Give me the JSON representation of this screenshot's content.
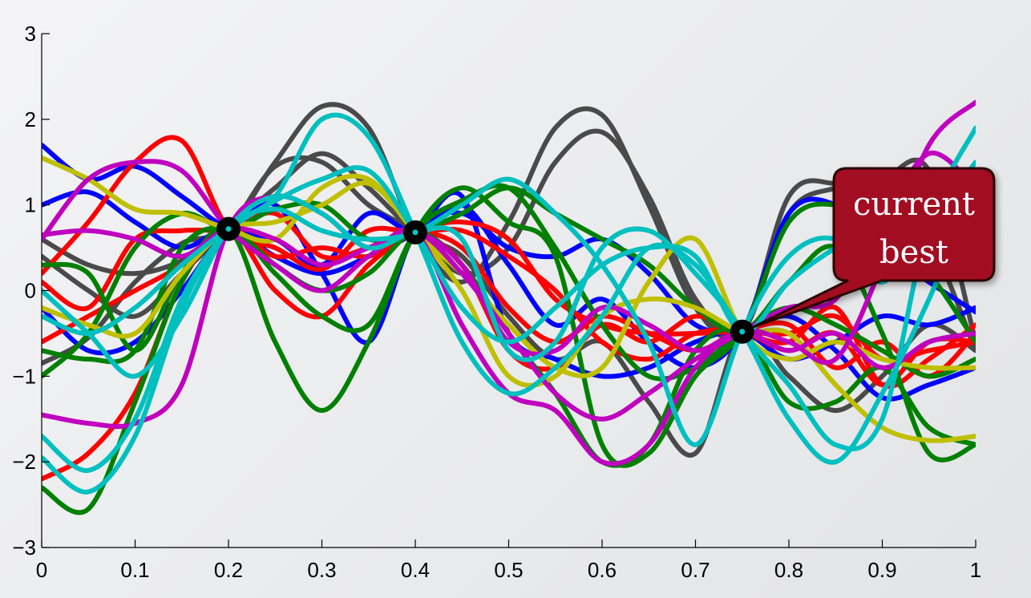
{
  "chart_data": {
    "type": "line",
    "title": "",
    "xlabel": "",
    "ylabel": "",
    "xlim": [
      0,
      1
    ],
    "ylim": [
      -3,
      3
    ],
    "x_ticks": [
      0,
      0.1,
      0.2,
      0.3,
      0.4,
      0.5,
      0.6,
      0.7,
      0.8,
      0.9,
      1
    ],
    "x_tick_labels": [
      "0",
      "0.1",
      "0.2",
      "0.3",
      "0.4",
      "0.5",
      "0.6",
      "0.7",
      "0.8",
      "0.9",
      "1"
    ],
    "y_ticks": [
      -3,
      -2,
      -1,
      0,
      1,
      2,
      3
    ],
    "y_tick_labels": [
      "−3",
      "−2",
      "−1",
      "0",
      "1",
      "2",
      "3"
    ],
    "grid": false,
    "observations": [
      {
        "x": 0.2,
        "y": 0.72
      },
      {
        "x": 0.4,
        "y": 0.68
      },
      {
        "x": 0.75,
        "y": -0.48
      }
    ],
    "annotation": {
      "text_lines": [
        "current",
        "best"
      ],
      "target_index": 2
    },
    "series_x": [
      0,
      0.05,
      0.1,
      0.15,
      0.2,
      0.25,
      0.3,
      0.35,
      0.4,
      0.45,
      0.5,
      0.55,
      0.6,
      0.65,
      0.7,
      0.75,
      0.8,
      0.85,
      0.9,
      0.95,
      1
    ],
    "series": [
      {
        "color": "#4a4a4a",
        "values": [
          -0.85,
          -0.55,
          0.1,
          0.55,
          0.72,
          1.5,
          2.15,
          1.9,
          0.68,
          0.1,
          0.8,
          1.9,
          2.05,
          1.0,
          -0.2,
          -0.48,
          1.1,
          1.25,
          1.1,
          0.6,
          -0.7
        ]
      },
      {
        "color": "#4a4a4a",
        "values": [
          0.6,
          0.3,
          0.2,
          0.35,
          0.72,
          1.45,
          1.5,
          1.0,
          0.68,
          0.2,
          0.5,
          1.5,
          1.85,
          1.1,
          -0.1,
          -0.48,
          0.9,
          1.2,
          1.3,
          1.4,
          -0.6
        ]
      },
      {
        "color": "#4a4a4a",
        "values": [
          0.4,
          0.0,
          -0.3,
          0.2,
          0.72,
          1.2,
          1.6,
          1.2,
          0.68,
          0.4,
          -0.3,
          -0.8,
          -0.6,
          -1.3,
          -1.9,
          -0.48,
          -1.0,
          -1.4,
          -1.0,
          -0.4,
          -0.7
        ]
      },
      {
        "color": "#0000ff",
        "values": [
          1.7,
          1.3,
          1.45,
          1.1,
          0.72,
          0.6,
          0.3,
          0.9,
          0.68,
          1.0,
          0.3,
          -0.4,
          -0.1,
          -0.6,
          -0.9,
          -0.48,
          0.9,
          1.0,
          0.5,
          0.1,
          -0.25
        ]
      },
      {
        "color": "#0000ff",
        "values": [
          1.0,
          1.15,
          0.8,
          0.5,
          0.72,
          0.4,
          0.2,
          0.4,
          0.68,
          1.1,
          -0.5,
          -0.8,
          -1.0,
          -0.9,
          -0.6,
          -0.48,
          -0.8,
          -0.6,
          -0.3,
          -0.4,
          -0.2
        ]
      },
      {
        "color": "#0000ff",
        "values": [
          -0.2,
          -0.7,
          -0.6,
          0.0,
          0.72,
          1.0,
          0.2,
          -0.6,
          0.68,
          0.9,
          0.5,
          0.4,
          0.6,
          0.2,
          -0.4,
          -0.48,
          -0.3,
          -0.7,
          -1.25,
          -1.1,
          -0.9
        ]
      },
      {
        "color": "#ff0000",
        "values": [
          0.2,
          0.8,
          1.5,
          1.75,
          0.72,
          0.5,
          0.25,
          0.7,
          0.68,
          0.7,
          0.4,
          0.0,
          -0.6,
          -0.8,
          -0.5,
          -0.48,
          -0.7,
          -0.5,
          -1.1,
          -0.6,
          -0.6
        ]
      },
      {
        "color": "#ff0000",
        "values": [
          -2.2,
          -1.9,
          -1.2,
          0.1,
          0.72,
          0.0,
          -0.3,
          0.3,
          0.68,
          0.8,
          0.6,
          -0.1,
          -0.4,
          -0.5,
          -0.5,
          -0.48,
          -0.5,
          -0.3,
          -0.8,
          -0.7,
          -0.6
        ]
      },
      {
        "color": "#ff0000",
        "values": [
          -0.6,
          -0.3,
          0.0,
          0.3,
          0.72,
          0.4,
          0.5,
          0.4,
          0.68,
          0.3,
          -0.7,
          -0.9,
          -0.4,
          -0.6,
          -0.3,
          -0.48,
          -0.6,
          -0.2,
          -1.1,
          -0.8,
          -0.4
        ]
      },
      {
        "color": "#ff0000",
        "values": [
          0.1,
          -0.2,
          0.6,
          0.7,
          0.72,
          0.9,
          0.4,
          0.5,
          0.68,
          0.5,
          -0.2,
          -0.6,
          -0.3,
          -0.5,
          -0.7,
          -0.48,
          -0.4,
          -0.9,
          -0.6,
          -1.0,
          -0.5
        ]
      },
      {
        "color": "#008000",
        "values": [
          -2.3,
          -2.55,
          -1.3,
          0.1,
          0.72,
          -0.6,
          -1.4,
          -0.6,
          0.68,
          1.2,
          0.8,
          0.4,
          -1.8,
          -1.9,
          -1.0,
          -0.48,
          0.8,
          1.0,
          0.7,
          0.2,
          -0.6
        ]
      },
      {
        "color": "#008000",
        "values": [
          0.3,
          0.2,
          -0.7,
          0.2,
          0.72,
          0.2,
          -0.3,
          -0.4,
          0.68,
          1.05,
          1.2,
          0.5,
          -0.4,
          -1.0,
          -0.9,
          -0.48,
          -0.2,
          -0.4,
          -0.7,
          -1.0,
          -0.8
        ]
      },
      {
        "color": "#008000",
        "values": [
          -1.0,
          -0.5,
          0.5,
          0.9,
          0.72,
          0.95,
          1.0,
          0.6,
          0.68,
          0.9,
          1.2,
          0.9,
          0.6,
          0.3,
          -0.2,
          -0.48,
          0.1,
          0.5,
          -0.5,
          -1.9,
          -1.8
        ]
      },
      {
        "color": "#008000",
        "values": [
          -0.7,
          -0.8,
          -0.7,
          0.5,
          0.72,
          0.3,
          0.0,
          0.2,
          0.68,
          0.3,
          -0.5,
          -1.2,
          -2.0,
          -1.8,
          -0.7,
          -0.48,
          -1.3,
          -1.3,
          -0.9,
          -1.6,
          -1.8
        ]
      },
      {
        "color": "#bfbf00",
        "values": [
          1.55,
          1.3,
          0.95,
          0.9,
          0.72,
          0.6,
          1.2,
          1.3,
          0.68,
          0.2,
          -0.4,
          -0.9,
          -0.9,
          0.1,
          0.6,
          -0.48,
          -0.8,
          -0.6,
          -0.8,
          -0.9,
          -0.9
        ]
      },
      {
        "color": "#bfbf00",
        "values": [
          -0.2,
          -0.4,
          -0.5,
          0.2,
          0.72,
          0.8,
          1.0,
          1.25,
          0.68,
          0.0,
          -1.0,
          -1.0,
          -0.3,
          -0.1,
          -0.2,
          -0.48,
          -0.5,
          -1.1,
          -1.6,
          -1.75,
          -1.7
        ]
      },
      {
        "color": "#bf00bf",
        "values": [
          -1.45,
          -1.55,
          -1.55,
          -1.1,
          0.72,
          1.1,
          0.9,
          0.5,
          0.68,
          -0.4,
          -1.2,
          -1.4,
          -2.0,
          -1.8,
          -0.9,
          -0.48,
          -0.6,
          -0.8,
          0.3,
          1.7,
          2.2
        ]
      },
      {
        "color": "#bf00bf",
        "values": [
          0.6,
          1.3,
          1.5,
          1.4,
          0.72,
          0.3,
          0.0,
          0.4,
          0.68,
          0.2,
          -0.5,
          -1.2,
          -1.5,
          -1.2,
          -0.8,
          -0.48,
          -0.2,
          -0.1,
          0.8,
          1.6,
          1.2
        ]
      },
      {
        "color": "#bf00bf",
        "values": [
          0.65,
          0.7,
          0.6,
          0.4,
          0.72,
          0.6,
          0.3,
          0.5,
          0.68,
          0.3,
          -0.6,
          -0.7,
          -0.2,
          -0.4,
          -0.7,
          -0.48,
          -0.7,
          -0.5,
          -0.9,
          -0.6,
          -0.5
        ]
      },
      {
        "color": "#00bfbf",
        "values": [
          -1.7,
          -2.1,
          -1.5,
          -0.1,
          0.72,
          1.1,
          2.0,
          1.8,
          0.68,
          -0.6,
          -1.2,
          -0.9,
          -0.3,
          0.5,
          0.3,
          -0.48,
          -1.1,
          -1.8,
          -1.5,
          0.8,
          1.9
        ]
      },
      {
        "color": "#00bfbf",
        "values": [
          -1.95,
          -2.35,
          -1.7,
          -0.2,
          0.72,
          0.95,
          0.7,
          0.6,
          0.68,
          1.0,
          1.3,
          0.9,
          0.3,
          -0.6,
          -1.8,
          -0.48,
          0.4,
          0.6,
          0.1,
          0.8,
          1.5
        ]
      },
      {
        "color": "#00bfbf",
        "values": [
          0.0,
          -0.5,
          -1.0,
          -0.3,
          0.72,
          1.1,
          0.9,
          0.5,
          0.68,
          0.6,
          -0.7,
          -0.6,
          0.5,
          0.7,
          0.2,
          -0.48,
          -1.5,
          -2.0,
          -1.2,
          -0.1,
          1.2
        ]
      },
      {
        "color": "#00bfbf",
        "values": [
          -0.3,
          -0.5,
          -0.2,
          0.3,
          0.72,
          1.05,
          1.3,
          1.4,
          0.68,
          -0.2,
          -0.6,
          -0.2,
          0.3,
          0.5,
          0.4,
          -0.48,
          0.1,
          0.5,
          0.8,
          1.0,
          1.0
        ]
      }
    ]
  }
}
